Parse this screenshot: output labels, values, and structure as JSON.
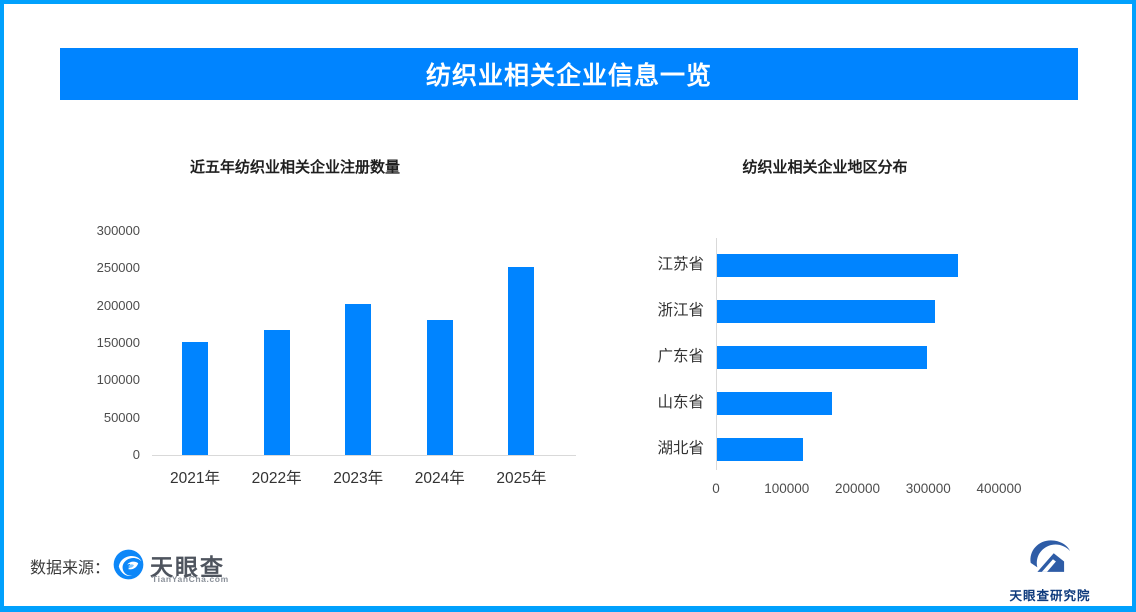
{
  "header": {
    "title": "纺织业相关企业信息一览"
  },
  "colors": {
    "border": "#01a1fd",
    "banner": "#0084ff",
    "bar": "#0084ff",
    "axis_line": "#d9d9d9",
    "tick_text": "#4d4d4d",
    "category_text": "#333333",
    "title_text": "#1f1f1f",
    "tyc_logo_blue": "#0d87f8",
    "institute_blue": "#2e5ca6"
  },
  "chart_data": [
    {
      "type": "bar",
      "orientation": "vertical",
      "title": "近五年纺织业相关企业注册数量",
      "categories": [
        "2021年",
        "2022年",
        "2023年",
        "2024年",
        "2025年"
      ],
      "values": [
        151000,
        167000,
        202000,
        181000,
        252000
      ],
      "xlabel": "",
      "ylabel": "",
      "ylim": [
        0,
        300000
      ],
      "yticks": [
        0,
        50000,
        100000,
        150000,
        200000,
        250000,
        300000
      ],
      "grid": false,
      "legend": false,
      "bar_color": "#0084ff"
    },
    {
      "type": "bar",
      "orientation": "horizontal",
      "title": "纺织业相关企业地区分布",
      "categories": [
        "江苏省",
        "浙江省",
        "广东省",
        "山东省",
        "湖北省"
      ],
      "values": [
        341000,
        308000,
        297000,
        162000,
        122000
      ],
      "xlabel": "",
      "ylabel": "",
      "xlim": [
        0,
        400000
      ],
      "xticks": [
        0,
        100000,
        200000,
        300000,
        400000
      ],
      "grid": false,
      "legend": false,
      "bar_color": "#0084ff"
    }
  ],
  "footer": {
    "source_label": "数据来源：",
    "tyc_wordmark": "天眼查",
    "tyc_subtext": "TianYanCha.com",
    "institute_label": "天眼查研究院"
  }
}
